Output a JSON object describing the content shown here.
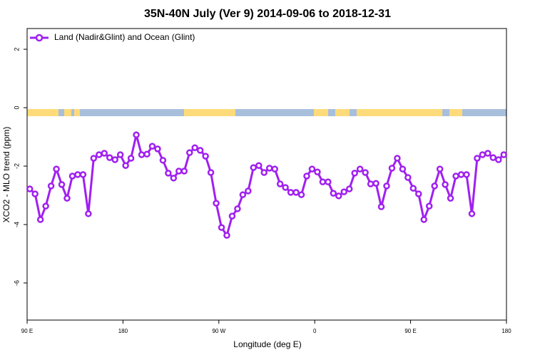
{
  "chart_data": {
    "type": "line",
    "title": "35N-40N July (Ver 9)   2014-09-06 to 2018-12-31",
    "x_label": "Longitude (deg E)",
    "y_label": "XCO2 - MLO trend (ppm)",
    "x": [
      92.5,
      97.5,
      102.5,
      107.5,
      112.5,
      117.5,
      122.5,
      127.5,
      132.5,
      137.5,
      142.5,
      147.5,
      152.5,
      157.5,
      162.5,
      167.5,
      172.5,
      177.5,
      182.5,
      187.5,
      192.5,
      197.5,
      202.5,
      207.5,
      212.5,
      217.5,
      222.5,
      227.5,
      232.5,
      237.5,
      242.5,
      247.5,
      252.5,
      257.5,
      262.5,
      267.5,
      272.5,
      277.5,
      282.5,
      287.5,
      292.5,
      297.5,
      302.5,
      307.5,
      312.5,
      317.5,
      322.5,
      327.5,
      332.5,
      337.5,
      342.5,
      347.5,
      352.5,
      357.5,
      362.5,
      367.5,
      372.5,
      377.5,
      382.5,
      387.5,
      392.5,
      397.5,
      402.5,
      407.5,
      412.5,
      417.5,
      422.5,
      427.5,
      432.5,
      437.5,
      442.5,
      447.5,
      452.5,
      457.5,
      462.5,
      467.5,
      472.5,
      477.5,
      482.5,
      487.5,
      492.5,
      497.5,
      502.5,
      507.5,
      512.5,
      517.5,
      522.5,
      527.5,
      532.5,
      537.5
    ],
    "series": [
      {
        "name": "Land (Nadir&Glint) and Ocean (Glint)",
        "color": "#a020f0",
        "values": [
          -2.78,
          -2.95,
          -3.83,
          -3.37,
          -2.68,
          -2.1,
          -2.63,
          -3.1,
          -2.34,
          -2.29,
          -2.29,
          -3.63,
          -1.73,
          -1.61,
          -1.56,
          -1.71,
          -1.78,
          -1.61,
          -1.98,
          -1.73,
          -0.93,
          -1.61,
          -1.59,
          -1.32,
          -1.41,
          -1.8,
          -2.24,
          -2.41,
          -2.17,
          -2.17,
          -1.54,
          -1.37,
          -1.46,
          -1.66,
          -2.22,
          -3.27,
          -4.1,
          -4.37,
          -3.71,
          -3.46,
          -2.98,
          -2.85,
          -2.05,
          -1.98,
          -2.22,
          -2.07,
          -2.1,
          -2.61,
          -2.73,
          -2.9,
          -2.9,
          -2.98,
          -2.34,
          -2.1,
          -2.2,
          -2.54,
          -2.54,
          -2.93,
          -3.02,
          -2.88,
          -2.78,
          -2.24,
          -2.1,
          -2.22,
          -2.61,
          -2.59,
          -3.39,
          -2.68,
          -2.07,
          -1.73,
          -2.1,
          -2.39,
          -2.76,
          -2.95,
          -3.83,
          -3.37,
          -2.68,
          -2.1,
          -2.63,
          -3.1,
          -2.34,
          -2.29,
          -2.29,
          -3.63,
          -1.73,
          -1.61,
          -1.56,
          -1.71,
          -1.78,
          -1.61
        ]
      }
    ],
    "xlim": [
      90,
      540
    ],
    "xticks": [
      {
        "value": 90,
        "label": "90 E"
      },
      180,
      {
        "value": 270,
        "label": "90 W"
      },
      {
        "value": 360,
        "label": "0"
      },
      {
        "value": 450,
        "label": "90 E"
      },
      {
        "value": 540,
        "label": "180"
      }
    ],
    "ylim": [
      -7.27,
      2.71
    ],
    "yticks": [
      2,
      0,
      -2,
      -4,
      -6
    ],
    "legend": "upper left"
  }
}
